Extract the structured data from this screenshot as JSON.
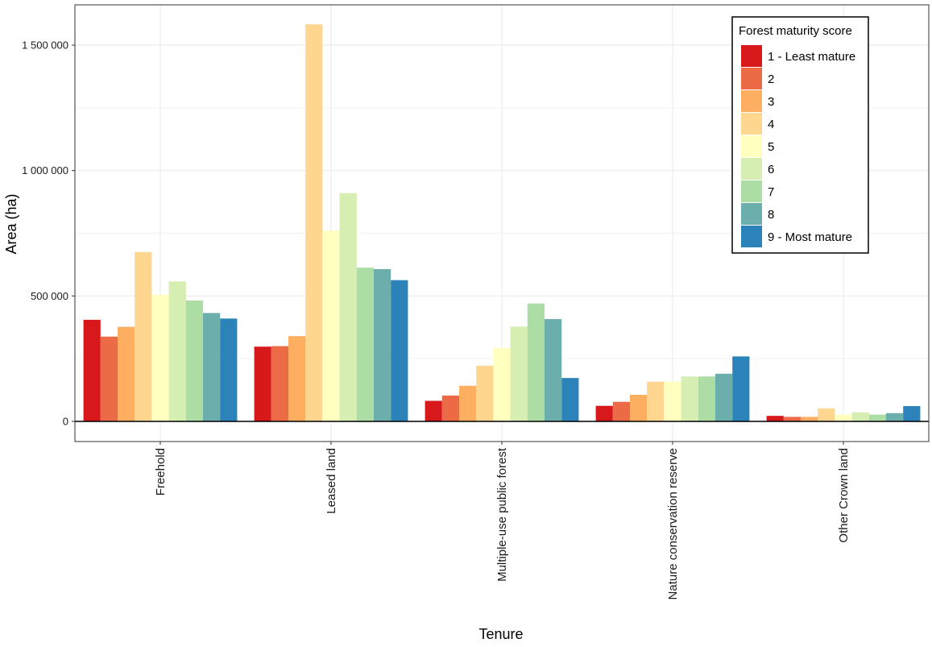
{
  "chart_data": {
    "type": "bar",
    "xlabel": "Tenure",
    "ylabel": "Area (ha)",
    "ylim": [
      -75000,
      1660000
    ],
    "y_ticks": [
      {
        "value": 0,
        "label": "0"
      },
      {
        "value": 500000,
        "label": "500 000"
      },
      {
        "value": 1000000,
        "label": "1 000 000"
      },
      {
        "value": 1500000,
        "label": "1 500 000"
      }
    ],
    "grid": true,
    "legend_position": "top-right",
    "legend_title": "Forest maturity score",
    "categories": [
      "Freehold",
      "Leased land",
      "Multiple-use public forest",
      "Nature conservation reserve",
      "Other Crown land"
    ],
    "series": [
      {
        "name": "1 - Least mature",
        "color": "#d7191c",
        "values": [
          405000,
          298000,
          82000,
          62000,
          22000
        ]
      },
      {
        "name": "2",
        "color": "#ed6a47",
        "values": [
          338000,
          300000,
          103000,
          78000,
          18000
        ]
      },
      {
        "name": "3",
        "color": "#fdae61",
        "values": [
          377000,
          340000,
          142000,
          106000,
          18000
        ]
      },
      {
        "name": "4",
        "color": "#fed690",
        "values": [
          675000,
          1583000,
          222000,
          158000,
          52000
        ]
      },
      {
        "name": "5",
        "color": "#ffffbf",
        "values": [
          505000,
          760000,
          293000,
          158000,
          27000
        ]
      },
      {
        "name": "6",
        "color": "#d6eeb1",
        "values": [
          558000,
          910000,
          378000,
          179000,
          36000
        ]
      },
      {
        "name": "7",
        "color": "#abdda4",
        "values": [
          482000,
          613000,
          470000,
          179000,
          27000
        ]
      },
      {
        "name": "8",
        "color": "#6baeab",
        "values": [
          432000,
          607000,
          408000,
          190000,
          33000
        ]
      },
      {
        "name": "9 - Most mature",
        "color": "#2b83ba",
        "values": [
          410000,
          563000,
          173000,
          259000,
          61000
        ]
      }
    ]
  }
}
